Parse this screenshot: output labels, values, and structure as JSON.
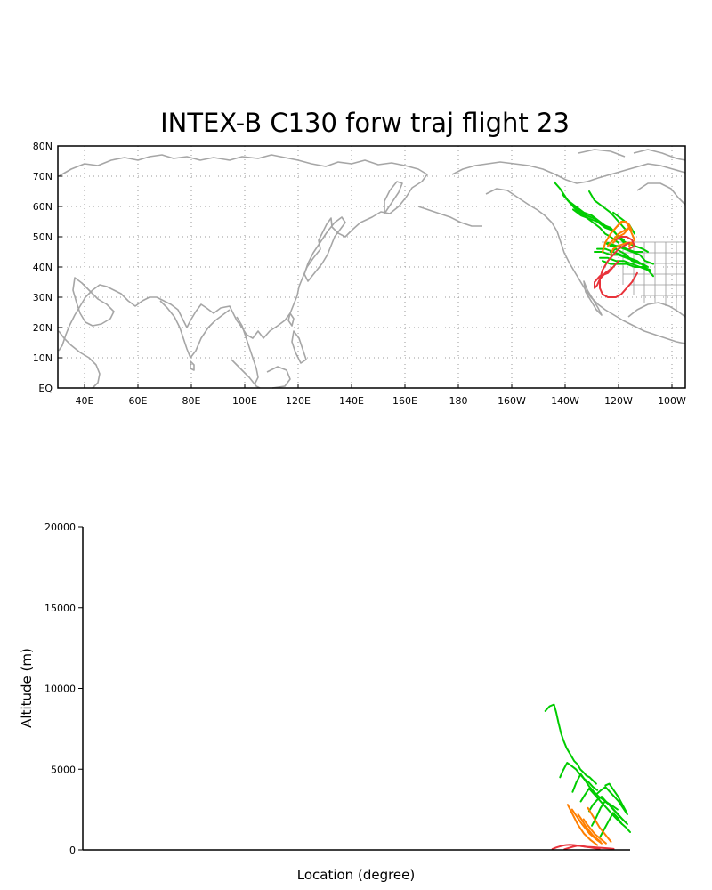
{
  "colors": {
    "green": "#00cc00",
    "orange": "#ff7f00",
    "red": "#e8333b",
    "coast": "#a6a6a6",
    "grid": "#9a9a9a"
  },
  "chart_data": [
    {
      "type": "line",
      "title": "INTEX-B C130 forw traj flight 23",
      "xlim": [
        30,
        265
      ],
      "ylim": [
        0,
        80
      ],
      "grid": true,
      "xticks": [
        "40E",
        "60E",
        "80E",
        "100E",
        "120E",
        "140E",
        "160E",
        "180",
        "160W",
        "140W",
        "120W",
        "100W"
      ],
      "xtick_values": [
        40,
        60,
        80,
        100,
        120,
        140,
        160,
        180,
        200,
        220,
        240,
        260
      ],
      "yticks": [
        "EQ",
        "10N",
        "20N",
        "30N",
        "40N",
        "50N",
        "60N",
        "70N",
        "80N"
      ],
      "ytick_values": [
        0,
        10,
        20,
        30,
        40,
        50,
        60,
        70,
        80
      ],
      "series": [
        {
          "color": "green",
          "x": [
            216,
            218,
            221,
            224,
            227,
            230,
            233,
            235,
            237,
            240
          ],
          "y": [
            68,
            66,
            62,
            59,
            57,
            55,
            53,
            51,
            50,
            48
          ]
        },
        {
          "color": "green",
          "x": [
            219,
            222,
            225,
            228,
            231,
            234,
            237,
            239,
            241
          ],
          "y": [
            64,
            61,
            59,
            57,
            56,
            54,
            53,
            51,
            49
          ]
        },
        {
          "color": "green",
          "x": [
            221,
            224,
            227,
            230,
            233,
            236,
            238,
            240,
            242
          ],
          "y": [
            62,
            60,
            58,
            57,
            55,
            53,
            52,
            50,
            48
          ]
        },
        {
          "color": "green",
          "x": [
            229,
            231,
            234,
            237,
            239,
            241,
            243
          ],
          "y": [
            65,
            62,
            60,
            58,
            56,
            54,
            52
          ]
        },
        {
          "color": "green",
          "x": [
            223,
            226,
            229,
            232,
            235,
            238,
            240,
            242
          ],
          "y": [
            59,
            57,
            56,
            55,
            53,
            52,
            50,
            49
          ]
        },
        {
          "color": "green",
          "x": [
            238,
            241,
            244,
            246
          ],
          "y": [
            58,
            56,
            54,
            51
          ]
        },
        {
          "color": "green",
          "x": [
            235,
            237,
            240,
            243,
            246,
            249
          ],
          "y": [
            48,
            47,
            47,
            46,
            45,
            45
          ]
        },
        {
          "color": "green",
          "x": [
            231,
            234,
            237,
            240,
            243,
            246,
            249,
            251
          ],
          "y": [
            45,
            45,
            44,
            44,
            43,
            42,
            41,
            40
          ]
        },
        {
          "color": "green",
          "x": [
            232,
            235,
            238,
            241,
            244,
            247,
            250,
            252,
            253
          ],
          "y": [
            46,
            46,
            45,
            44,
            43,
            42,
            40,
            38,
            37
          ]
        },
        {
          "color": "green",
          "x": [
            233,
            236,
            239,
            242,
            245,
            248,
            251
          ],
          "y": [
            43,
            43,
            42,
            42,
            41,
            40,
            39
          ]
        },
        {
          "color": "green",
          "x": [
            234,
            237,
            240,
            243,
            246,
            249,
            252
          ],
          "y": [
            42,
            41,
            41,
            41,
            40,
            40,
            39
          ]
        },
        {
          "color": "green",
          "x": [
            236,
            239,
            242,
            245,
            248,
            250,
            253
          ],
          "y": [
            48,
            47,
            46,
            45,
            44,
            42,
            41
          ]
        },
        {
          "color": "green",
          "x": [
            239,
            241,
            243,
            246,
            249,
            251
          ],
          "y": [
            50,
            49,
            48,
            47,
            46,
            45
          ]
        },
        {
          "color": "green",
          "x": [
            237,
            239,
            241,
            243,
            245,
            248
          ],
          "y": [
            45,
            46,
            45,
            44,
            42,
            41
          ]
        },
        {
          "color": "orange",
          "x": [
            234,
            235,
            237,
            239,
            241,
            243,
            244,
            242,
            240,
            238
          ],
          "y": [
            45,
            48,
            51,
            53,
            55,
            55,
            53,
            51,
            50,
            48
          ]
        },
        {
          "color": "orange",
          "x": [
            236,
            238,
            240,
            242,
            244,
            245,
            246,
            244
          ],
          "y": [
            47,
            49,
            51,
            52,
            53,
            51,
            49,
            47
          ]
        },
        {
          "color": "orange",
          "x": [
            237,
            238,
            240,
            243,
            245,
            246
          ],
          "y": [
            44,
            46,
            47,
            48,
            48,
            47
          ]
        },
        {
          "color": "orange",
          "x": [
            238,
            240,
            242,
            244,
            245
          ],
          "y": [
            52,
            54,
            55,
            54,
            52
          ]
        },
        {
          "color": "red",
          "x": [
            244,
            242,
            240,
            238,
            236,
            234,
            233,
            233,
            234,
            236,
            239,
            241,
            243,
            245,
            247
          ],
          "y": [
            48,
            47,
            46,
            44,
            42,
            39,
            36,
            33,
            31,
            30,
            30,
            31,
            33,
            35,
            38
          ]
        },
        {
          "color": "red",
          "x": [
            240,
            238,
            235,
            233,
            232,
            231,
            231,
            233,
            236,
            238
          ],
          "y": [
            42,
            40,
            38,
            36,
            34,
            33,
            35,
            37,
            38,
            40
          ]
        },
        {
          "color": "red",
          "x": [
            239,
            241,
            243,
            245,
            246,
            244
          ],
          "y": [
            49,
            50,
            50,
            49,
            47,
            46
          ]
        }
      ]
    },
    {
      "type": "line",
      "xlabel": "Location (degree)",
      "ylabel": "Altitude (m)",
      "ylim": [
        0,
        20000
      ],
      "xlim": [
        0,
        100
      ],
      "yticks": [
        "0",
        "5000",
        "10000",
        "15000",
        "20000"
      ],
      "ytick_values": [
        0,
        5000,
        10000,
        15000,
        20000
      ],
      "series": [
        {
          "color": "green",
          "x": [
            84.5,
            85.3,
            86.1,
            86.5,
            86.9,
            87.4,
            87.8,
            88.4,
            89.1,
            89.8,
            90.4,
            90.9,
            91.5,
            92.0,
            92.6,
            93.2,
            93.8
          ],
          "y": [
            8600,
            8900,
            9000,
            8500,
            7900,
            7200,
            6800,
            6300,
            5900,
            5500,
            5300,
            5000,
            4800,
            4600,
            4500,
            4300,
            4100
          ]
        },
        {
          "color": "green",
          "x": [
            87.2,
            87.7,
            88.5,
            89.3,
            90.1,
            90.8,
            91.6,
            92.4,
            93.2,
            94.0
          ],
          "y": [
            4500,
            4900,
            5400,
            5200,
            5000,
            4700,
            4400,
            4200,
            3900,
            3700
          ]
        },
        {
          "color": "green",
          "x": [
            89.5,
            90.2,
            91.0,
            91.8,
            92.6,
            93.4,
            94.3,
            95.1,
            96.0,
            96.9,
            97.7
          ],
          "y": [
            3600,
            4200,
            4700,
            4300,
            3900,
            3600,
            3300,
            3100,
            2900,
            2700,
            2500
          ]
        },
        {
          "color": "green",
          "x": [
            91.0,
            91.7,
            92.5,
            93.3,
            94.1,
            94.9,
            95.7,
            96.5,
            97.3,
            98.2,
            99.2,
            100.0
          ],
          "y": [
            3000,
            3400,
            3800,
            3500,
            3200,
            2900,
            2600,
            2300,
            2000,
            1700,
            1400,
            1100
          ]
        },
        {
          "color": "green",
          "x": [
            92.5,
            93.2,
            94.0,
            94.8,
            95.6,
            96.4,
            97.2,
            98.0,
            98.9
          ],
          "y": [
            2400,
            2800,
            3100,
            3300,
            3000,
            2700,
            2400,
            2100,
            1800
          ]
        },
        {
          "color": "green",
          "x": [
            94.0,
            94.7,
            95.5,
            96.3,
            97.1,
            97.9,
            98.7,
            99.5
          ],
          "y": [
            3500,
            3700,
            3900,
            3600,
            3300,
            3000,
            2600,
            2200
          ]
        },
        {
          "color": "green",
          "x": [
            95.5,
            96.2,
            97.0,
            97.8,
            98.6,
            99.4
          ],
          "y": [
            4000,
            4100,
            3700,
            3300,
            2800,
            2300
          ]
        },
        {
          "color": "green",
          "x": [
            93.0,
            93.8,
            94.6,
            95.4,
            96.2,
            97.0,
            97.8,
            98.6,
            99.5
          ],
          "y": [
            1500,
            2000,
            2600,
            3000,
            2800,
            2500,
            2200,
            1900,
            1600
          ]
        },
        {
          "color": "green",
          "x": [
            94.5,
            95.3,
            96.1,
            96.9,
            97.7,
            98.5
          ],
          "y": [
            800,
            1300,
            1800,
            2300,
            2000,
            1600
          ]
        },
        {
          "color": "orange",
          "x": [
            88.6,
            89.2,
            89.8,
            90.4,
            91.0,
            91.6,
            92.2,
            92.8,
            93.4,
            94.0
          ],
          "y": [
            2800,
            2400,
            2000,
            1600,
            1300,
            1000,
            800,
            600,
            450,
            300
          ]
        },
        {
          "color": "orange",
          "x": [
            89.4,
            90.0,
            90.6,
            91.2,
            91.9,
            92.6,
            93.3,
            94.0,
            94.8
          ],
          "y": [
            2500,
            2200,
            1900,
            1600,
            1300,
            1000,
            800,
            600,
            400
          ]
        },
        {
          "color": "orange",
          "x": [
            90.5,
            91.1,
            91.8,
            92.5,
            93.2,
            93.9,
            94.6
          ],
          "y": [
            2200,
            1900,
            1500,
            1200,
            900,
            700,
            500
          ]
        },
        {
          "color": "orange",
          "x": [
            91.5,
            92.1,
            92.8,
            93.5,
            94.2,
            94.9,
            95.6
          ],
          "y": [
            1900,
            1600,
            1300,
            1000,
            800,
            600,
            400
          ]
        },
        {
          "color": "orange",
          "x": [
            92.3,
            93.0,
            93.7,
            94.4,
            95.1,
            95.8,
            96.5
          ],
          "y": [
            2600,
            2200,
            1800,
            1400,
            1100,
            800,
            500
          ]
        },
        {
          "color": "red",
          "x": [
            85.8,
            86.5,
            87.3,
            88.1,
            89.0,
            89.8,
            90.6,
            91.4,
            92.2,
            93.0,
            93.8,
            94.6,
            95.4,
            96.2,
            97.0
          ],
          "y": [
            50,
            150,
            230,
            290,
            320,
            300,
            260,
            220,
            190,
            170,
            150,
            130,
            110,
            90,
            60
          ]
        },
        {
          "color": "red",
          "x": [
            88.0,
            88.8,
            89.6,
            90.4,
            91.2,
            92.0,
            92.8,
            93.6,
            94.4
          ],
          "y": [
            40,
            120,
            200,
            260,
            230,
            190,
            150,
            100,
            60
          ]
        }
      ]
    }
  ]
}
